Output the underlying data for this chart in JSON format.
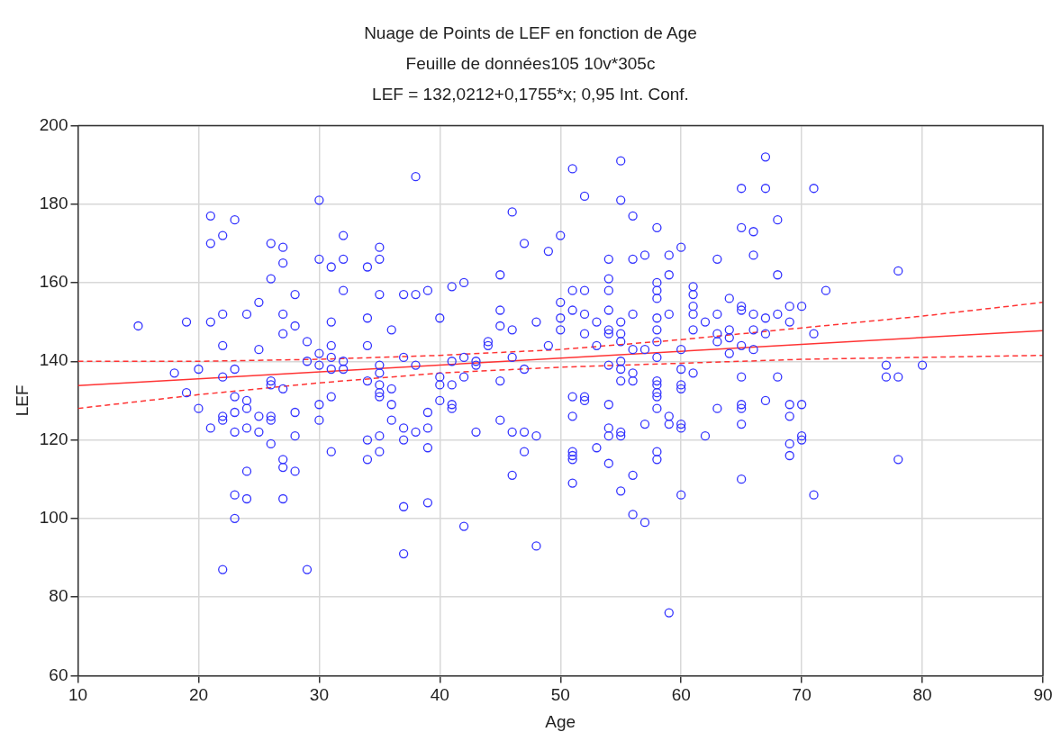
{
  "chart_data": {
    "type": "scatter",
    "title": "Nuage de Points de LEF en fonction de Age",
    "subtitle": "Feuille de données105 10v*305c",
    "annotations": [
      "LEF = 132,0212+0,1755*x; 0,95 Int. Conf."
    ],
    "xlabel": "Age",
    "ylabel": "LEF",
    "xlim": [
      10,
      90
    ],
    "ylim": [
      60,
      200
    ],
    "xticks": [
      10,
      20,
      30,
      40,
      50,
      60,
      70,
      80,
      90
    ],
    "yticks": [
      60,
      80,
      100,
      120,
      140,
      160,
      180,
      200
    ],
    "grid": true,
    "series": [
      {
        "marker": "circle",
        "color": "#3333ff",
        "x": [
          15,
          18,
          19,
          19,
          20,
          20,
          21,
          21,
          21,
          21,
          22,
          22,
          22,
          22,
          22,
          22,
          22,
          23,
          23,
          23,
          23,
          23,
          23,
          23,
          24,
          24,
          24,
          24,
          24,
          24,
          25,
          25,
          25,
          25,
          26,
          26,
          26,
          26,
          26,
          26,
          26,
          27,
          27,
          27,
          27,
          27,
          27,
          27,
          27,
          28,
          28,
          28,
          28,
          28,
          29,
          29,
          29,
          30,
          30,
          30,
          30,
          30,
          30,
          31,
          31,
          31,
          31,
          31,
          31,
          31,
          32,
          32,
          32,
          32,
          32,
          34,
          34,
          34,
          34,
          34,
          34,
          35,
          35,
          35,
          35,
          35,
          35,
          35,
          35,
          35,
          35,
          36,
          36,
          36,
          36,
          37,
          37,
          37,
          37,
          37,
          37,
          38,
          38,
          38,
          38,
          39,
          39,
          39,
          39,
          39,
          40,
          40,
          40,
          40,
          41,
          41,
          41,
          41,
          41,
          42,
          42,
          42,
          42,
          43,
          43,
          43,
          44,
          44,
          45,
          45,
          45,
          45,
          45,
          46,
          46,
          46,
          46,
          46,
          47,
          47,
          47,
          47,
          48,
          48,
          48,
          49,
          49,
          50,
          50,
          50,
          50,
          51,
          51,
          51,
          51,
          51,
          51,
          51,
          51,
          51,
          52,
          52,
          52,
          52,
          52,
          52,
          53,
          53,
          53,
          54,
          54,
          54,
          54,
          54,
          54,
          54,
          54,
          54,
          54,
          54,
          55,
          55,
          55,
          55,
          55,
          55,
          55,
          55,
          55,
          55,
          55,
          56,
          56,
          56,
          56,
          56,
          56,
          56,
          56,
          57,
          57,
          57,
          57,
          58,
          58,
          58,
          58,
          58,
          58,
          58,
          58,
          58,
          58,
          58,
          58,
          58,
          58,
          58,
          59,
          59,
          59,
          59,
          59,
          59,
          60,
          60,
          60,
          60,
          60,
          60,
          60,
          60,
          61,
          61,
          61,
          61,
          61,
          61,
          62,
          62,
          63,
          63,
          63,
          63,
          63,
          64,
          64,
          64,
          64,
          65,
          65,
          65,
          65,
          65,
          65,
          65,
          65,
          65,
          65,
          66,
          66,
          66,
          66,
          66,
          67,
          67,
          67,
          67,
          67,
          68,
          68,
          68,
          68,
          69,
          69,
          69,
          69,
          69,
          69,
          70,
          70,
          70,
          70,
          71,
          71,
          71,
          72,
          77,
          77,
          78,
          78,
          78,
          80
        ],
        "values": [
          149,
          137,
          150,
          132,
          138,
          128,
          177,
          170,
          150,
          123,
          172,
          152,
          144,
          136,
          126,
          125,
          87,
          176,
          138,
          131,
          127,
          122,
          106,
          100,
          152,
          130,
          128,
          123,
          112,
          105,
          155,
          143,
          126,
          122,
          170,
          161,
          135,
          134,
          126,
          125,
          119,
          169,
          165,
          152,
          147,
          133,
          115,
          113,
          105,
          157,
          149,
          127,
          121,
          112,
          145,
          140,
          87,
          181,
          166,
          142,
          139,
          129,
          125,
          164,
          150,
          144,
          141,
          138,
          131,
          117,
          172,
          166,
          158,
          140,
          138,
          164,
          151,
          144,
          135,
          120,
          115,
          169,
          166,
          157,
          139,
          137,
          134,
          132,
          131,
          121,
          117,
          148,
          133,
          129,
          125,
          157,
          141,
          123,
          120,
          103,
          91,
          187,
          157,
          139,
          122,
          158,
          127,
          123,
          118,
          104,
          151,
          136,
          134,
          130,
          159,
          140,
          134,
          129,
          128,
          160,
          141,
          136,
          98,
          140,
          139,
          122,
          145,
          144,
          162,
          153,
          149,
          135,
          125,
          178,
          148,
          141,
          122,
          111,
          170,
          138,
          122,
          117,
          150,
          121,
          93,
          168,
          144,
          172,
          155,
          151,
          148,
          189,
          158,
          153,
          131,
          126,
          117,
          116,
          115,
          109,
          182,
          158,
          152,
          147,
          131,
          130,
          150,
          144,
          118,
          166,
          161,
          158,
          153,
          148,
          147,
          139,
          129,
          123,
          121,
          114,
          191,
          181,
          150,
          147,
          145,
          140,
          138,
          135,
          122,
          121,
          107,
          177,
          166,
          152,
          143,
          137,
          135,
          111,
          101,
          167,
          143,
          124,
          99,
          174,
          160,
          158,
          156,
          151,
          148,
          145,
          141,
          135,
          134,
          132,
          131,
          128,
          117,
          115,
          167,
          162,
          152,
          126,
          124,
          76,
          169,
          143,
          138,
          134,
          133,
          124,
          123,
          106,
          159,
          157,
          154,
          152,
          148,
          137,
          150,
          121,
          166,
          152,
          147,
          145,
          128,
          156,
          148,
          146,
          142,
          184,
          174,
          154,
          153,
          144,
          136,
          129,
          128,
          124,
          110,
          173,
          167,
          152,
          148,
          143,
          192,
          184,
          151,
          147,
          130,
          176,
          162,
          152,
          136,
          154,
          150,
          129,
          126,
          119,
          116,
          154,
          129,
          121,
          120,
          184,
          147,
          106,
          158,
          139,
          136,
          163,
          136,
          115,
          139
        ]
      },
      {
        "type": "line",
        "marker": "none",
        "color": "#ff3333",
        "line_style": "solid",
        "x": [
          10,
          90
        ],
        "values": [
          133.8,
          147.8
        ]
      },
      {
        "type": "line",
        "marker": "none",
        "color": "#ff3333",
        "line_style": "dashed",
        "x": [
          10,
          20,
          30,
          40,
          50,
          60,
          70,
          80,
          90
        ],
        "values": [
          140,
          140,
          140.5,
          141.5,
          143,
          145.5,
          148.5,
          151.5,
          155
        ]
      },
      {
        "type": "line",
        "marker": "none",
        "color": "#ff3333",
        "line_style": "dashed",
        "x": [
          10,
          20,
          30,
          40,
          50,
          60,
          70,
          80,
          90
        ],
        "values": [
          128,
          131.5,
          134.5,
          137,
          138.5,
          139.5,
          140.5,
          141,
          141.5
        ]
      }
    ]
  }
}
